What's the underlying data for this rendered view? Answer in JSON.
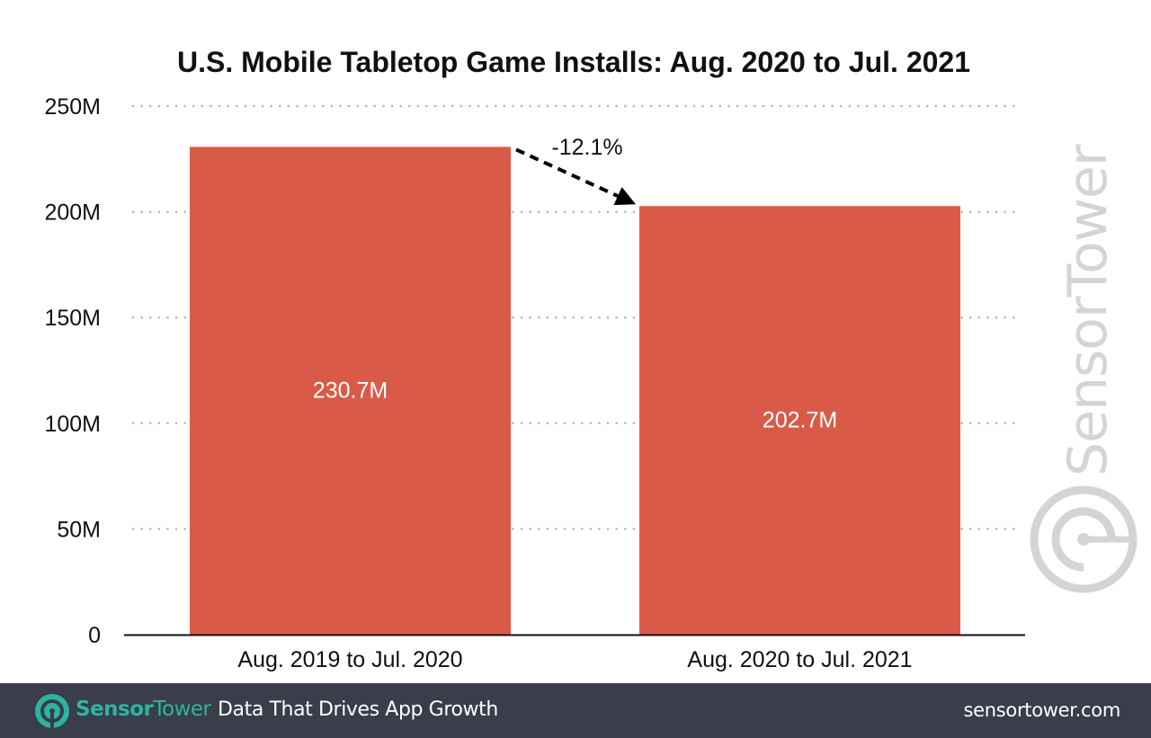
{
  "chart_data": {
    "type": "bar",
    "title": "U.S. Mobile Tabletop Game Installs: Aug. 2020 to Jul. 2021",
    "xlabel": "",
    "ylabel": "",
    "categories": [
      "Aug. 2019 to Jul. 2020",
      "Aug. 2020 to Jul. 2021"
    ],
    "values": [
      230.7,
      202.7
    ],
    "value_labels": [
      "230.7M",
      "202.7M"
    ],
    "ylim": [
      0,
      250
    ],
    "yticks": [
      0,
      50,
      100,
      150,
      200,
      250
    ],
    "ytick_labels": [
      "0",
      "50M",
      "100M",
      "150M",
      "200M",
      "250M"
    ],
    "grid": "horizontal-dotted",
    "bar_color": "#d95b47",
    "annotation": {
      "text": "-12.1%",
      "type": "dashed-arrow",
      "from": "Aug. 2019 to Jul. 2020",
      "to": "Aug. 2020 to Jul. 2021"
    },
    "watermark": "SensorTower"
  },
  "footer": {
    "brand_part1": "Sensor",
    "brand_part2": "Tower",
    "tagline": "Data That Drives App Growth",
    "site": "sensortower.com",
    "brand_color": "#2bb5a0",
    "background": "#3a3d4a"
  }
}
